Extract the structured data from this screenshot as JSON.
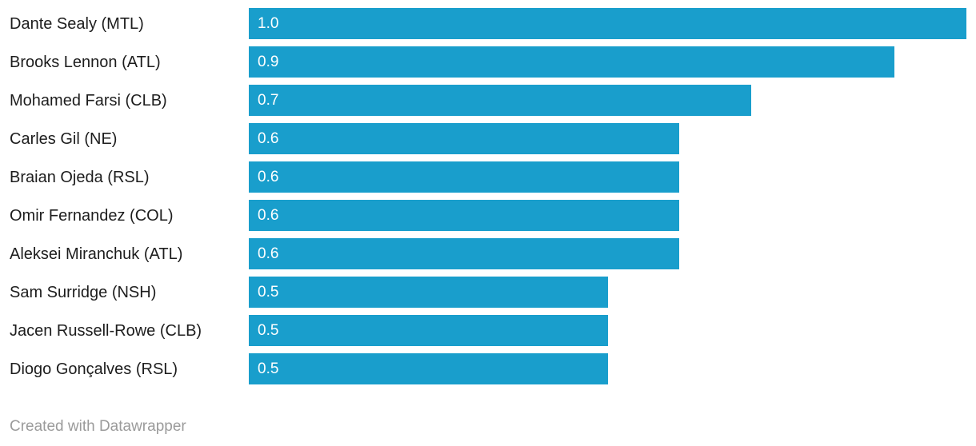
{
  "chart_data": {
    "type": "bar",
    "orientation": "horizontal",
    "categories": [
      "Dante Sealy (MTL)",
      "Brooks Lennon (ATL)",
      "Mohamed Farsi (CLB)",
      "Carles Gil (NE)",
      "Braian Ojeda (RSL)",
      "Omir Fernandez (COL)",
      "Aleksei Miranchuk (ATL)",
      "Sam Surridge (NSH)",
      "Jacen Russell-Rowe (CLB)",
      "Diogo Gonçalves (RSL)"
    ],
    "values": [
      1.0,
      0.9,
      0.7,
      0.6,
      0.6,
      0.6,
      0.6,
      0.5,
      0.5,
      0.5
    ],
    "value_labels": [
      "1.0",
      "0.9",
      "0.7",
      "0.6",
      "0.6",
      "0.6",
      "0.6",
      "0.5",
      "0.5",
      "0.5"
    ],
    "title": "",
    "xlabel": "",
    "ylabel": "",
    "xlim": [
      0,
      1.0
    ],
    "grid": false,
    "legend": "none",
    "value_label_position": "inside-start"
  },
  "colors": {
    "bar": "#199ecc",
    "category_label": "#1d1d1d",
    "value_label": "#ffffff",
    "footer_text": "#9b9b9b",
    "background": "#ffffff"
  },
  "footer": {
    "credit": "Created with Datawrapper"
  }
}
